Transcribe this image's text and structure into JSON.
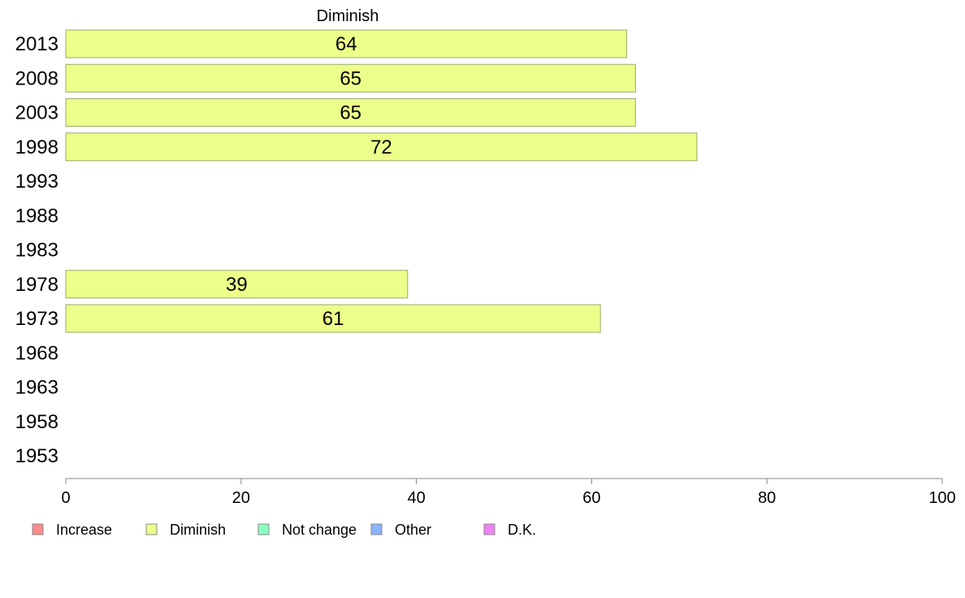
{
  "chart_data": {
    "type": "bar",
    "orientation": "horizontal",
    "series_title": "Diminish",
    "categories": [
      "2013",
      "2008",
      "2003",
      "1998",
      "1993",
      "1988",
      "1983",
      "1978",
      "1973",
      "1968",
      "1963",
      "1958",
      "1953"
    ],
    "series": [
      {
        "name": "Diminish",
        "values": [
          64,
          65,
          65,
          72,
          null,
          null,
          null,
          39,
          61,
          null,
          null,
          null,
          null
        ]
      }
    ],
    "xlim": [
      0,
      100
    ],
    "x_ticks": [
      "0",
      "20",
      "40",
      "60",
      "80",
      "100"
    ],
    "grid": false,
    "legend_position": "bottom-left",
    "legend": [
      {
        "label": "Increase",
        "color": "#ff8c8c"
      },
      {
        "label": "Diminish",
        "color": "#ecff8a"
      },
      {
        "label": "Not change",
        "color": "#8affc0"
      },
      {
        "label": "Other",
        "color": "#8ab4ff"
      },
      {
        "label": "D.K.",
        "color": "#f082f5"
      }
    ],
    "bar_color": "#ecff8a",
    "bar_stroke": "#9aa86a"
  }
}
